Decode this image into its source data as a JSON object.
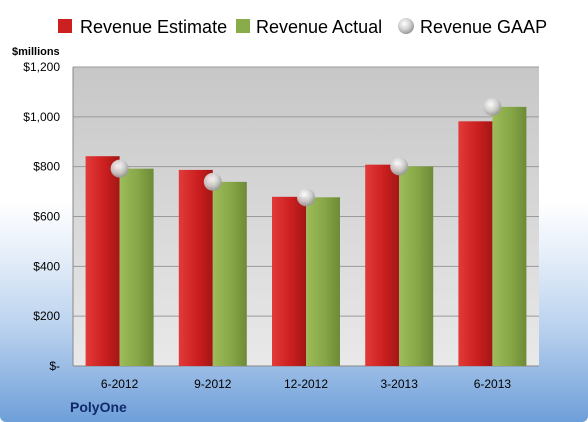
{
  "chart_data": {
    "type": "bar",
    "company": "PolyOne",
    "unit_label": "$millions",
    "categories": [
      "6-2012",
      "9-2012",
      "12-2012",
      "3-2013",
      "6-2013"
    ],
    "series": [
      {
        "name": "Revenue Estimate",
        "kind": "bar",
        "color": "#cc1f1f",
        "values": [
          842,
          787,
          679,
          808,
          982
        ]
      },
      {
        "name": "Revenue Actual",
        "kind": "bar",
        "color": "#8aab4a",
        "values": [
          792,
          739,
          677,
          801,
          1040
        ]
      },
      {
        "name": "Revenue GAAP",
        "kind": "marker",
        "color": "#c8c8c8",
        "values": [
          792,
          739,
          677,
          801,
          1040
        ]
      }
    ],
    "ylim": [
      0,
      1200
    ],
    "yticks": [
      0,
      200,
      400,
      600,
      800,
      1000,
      1200
    ],
    "ytick_labels": [
      "$-",
      "$200",
      "$400",
      "$600",
      "$800",
      "$1,000",
      "$1,200"
    ],
    "grid": true,
    "legend_position": "top"
  }
}
